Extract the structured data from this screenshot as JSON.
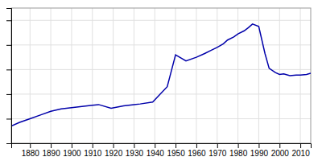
{
  "chart_data": {
    "type": "line",
    "x": [
      1871,
      1875,
      1880,
      1885,
      1890,
      1895,
      1900,
      1905,
      1910,
      1913,
      1919,
      1925,
      1930,
      1933,
      1939,
      1946,
      1950,
      1952,
      1955,
      1960,
      1964,
      1967,
      1970,
      1973,
      1975,
      1978,
      1980,
      1983,
      1985,
      1987,
      1990,
      1993,
      1995,
      1998,
      2000,
      2002,
      2005,
      2008,
      2010,
      2013,
      2015
    ],
    "values": [
      1400,
      1700,
      2000,
      2300,
      2600,
      2800,
      2900,
      3000,
      3100,
      3150,
      2850,
      3050,
      3150,
      3200,
      3350,
      4600,
      7200,
      7000,
      6700,
      7000,
      7300,
      7550,
      7800,
      8100,
      8400,
      8650,
      8900,
      9150,
      9400,
      9700,
      9500,
      7300,
      6100,
      5750,
      5600,
      5650,
      5500,
      5550,
      5550,
      5600,
      5700
    ],
    "color": "#0000AA",
    "xlim": [
      1871,
      2015
    ],
    "ylim": [
      0,
      11000
    ],
    "xticks": [
      1880,
      1890,
      1900,
      1910,
      1920,
      1930,
      1940,
      1950,
      1960,
      1970,
      1980,
      1990,
      2000,
      2010
    ],
    "yticks": [
      0,
      2000,
      4000,
      6000,
      8000,
      10000
    ],
    "grid": true,
    "tick_labels": "x"
  }
}
